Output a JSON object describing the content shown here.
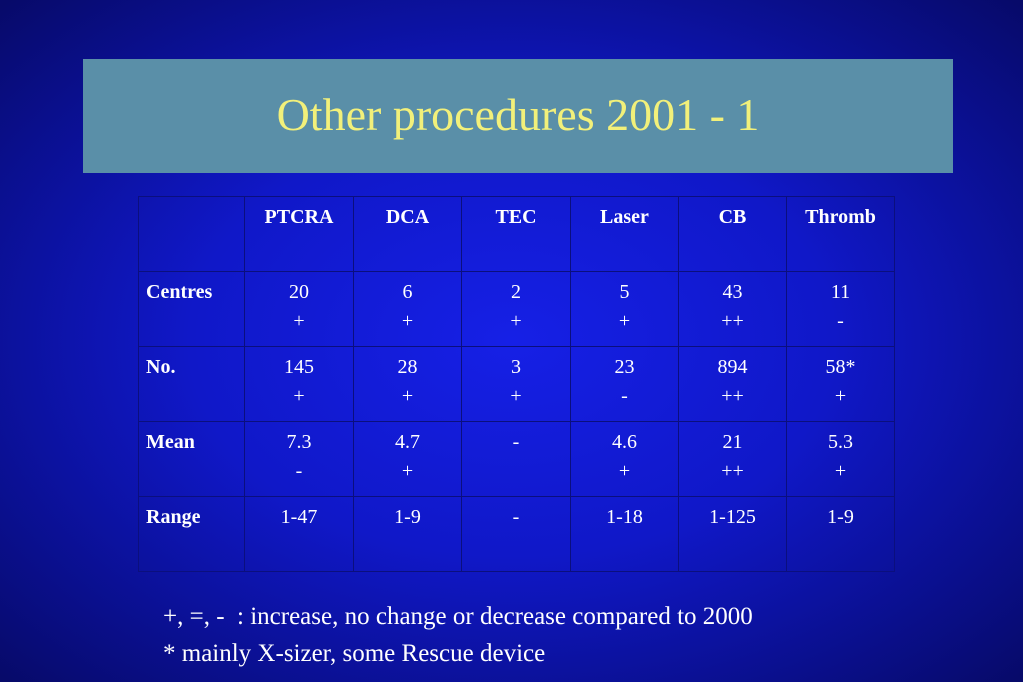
{
  "title": "Other procedures 2001 - 1",
  "table": {
    "columns": [
      "",
      "PTCRA",
      "DCA",
      "TEC",
      "Laser",
      "CB",
      "Thromb"
    ],
    "rows": [
      {
        "label": "Centres",
        "cells": [
          {
            "value": "20",
            "trend": "+"
          },
          {
            "value": "6",
            "trend": "+"
          },
          {
            "value": "2",
            "trend": "+"
          },
          {
            "value": "5",
            "trend": "+"
          },
          {
            "value": "43",
            "trend": "++"
          },
          {
            "value": "11",
            "trend": "-"
          }
        ]
      },
      {
        "label": "No.",
        "cells": [
          {
            "value": "145",
            "trend": "+"
          },
          {
            "value": "28",
            "trend": "+"
          },
          {
            "value": "3",
            "trend": "+"
          },
          {
            "value": "23",
            "trend": "-"
          },
          {
            "value": "894",
            "trend": "++"
          },
          {
            "value": "58*",
            "trend": "+"
          }
        ]
      },
      {
        "label": "Mean",
        "cells": [
          {
            "value": "7.3",
            "trend": "-"
          },
          {
            "value": "4.7",
            "trend": "+"
          },
          {
            "value": "-",
            "trend": ""
          },
          {
            "value": "4.6",
            "trend": "+"
          },
          {
            "value": "21",
            "trend": "++"
          },
          {
            "value": "5.3",
            "trend": "+"
          }
        ]
      },
      {
        "label": "Range",
        "cells": [
          {
            "value": "1-47",
            "trend": ""
          },
          {
            "value": "1-9",
            "trend": ""
          },
          {
            "value": "-",
            "trend": ""
          },
          {
            "value": "1-18",
            "trend": ""
          },
          {
            "value": "1-125",
            "trend": ""
          },
          {
            "value": "1-9",
            "trend": ""
          }
        ]
      }
    ]
  },
  "footnotes": [
    "+, =, -  : increase, no change or decrease compared to 2000",
    "* mainly X-sizer, some Rescue device"
  ],
  "colors": {
    "background": "#1018c8",
    "title_box": "#5a8fa8",
    "title_text": "#f2f07a",
    "table_text": "#ffffff"
  }
}
